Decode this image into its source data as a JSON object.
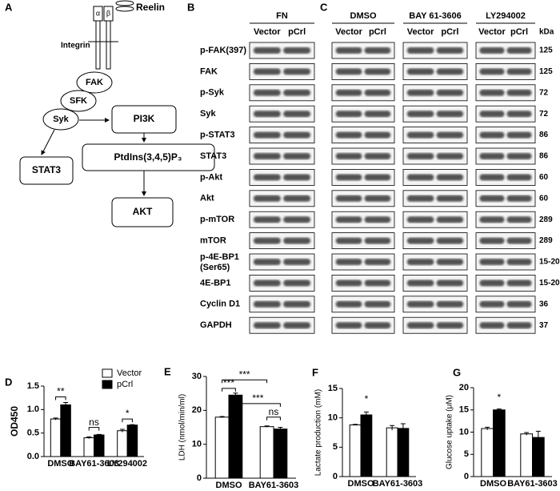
{
  "diagram": {
    "label": "A",
    "ligand": "Reelin",
    "receptor": "Integrin",
    "alpha": "α",
    "beta": "β",
    "nodes": [
      "FAK",
      "SFK",
      "Syk",
      "PI3K",
      "STAT3",
      "PtdIns(3,4,5)P₃",
      "AKT"
    ]
  },
  "blots": {
    "panel_b": {
      "label": "B",
      "condition": "FN",
      "lanes": [
        "Vector",
        "pCrl"
      ]
    },
    "panel_c": {
      "label": "C",
      "unit": "kDa",
      "groups": [
        {
          "name": "DMSO",
          "lanes": [
            "Vector",
            "pCrl"
          ]
        },
        {
          "name": "BAY 61-3606",
          "lanes": [
            "Vector",
            "pCrl"
          ]
        },
        {
          "name": "LY294002",
          "lanes": [
            "Vector",
            "pCrl"
          ]
        }
      ]
    },
    "rows": [
      {
        "protein": "p-FAK(397)",
        "kda": "125"
      },
      {
        "protein": "FAK",
        "kda": "125"
      },
      {
        "protein": "p-Syk",
        "kda": "72"
      },
      {
        "protein": "Syk",
        "kda": "72"
      },
      {
        "protein": "p-STAT3",
        "kda": "86"
      },
      {
        "protein": "STAT3",
        "kda": "86"
      },
      {
        "protein": "p-Akt",
        "kda": "60"
      },
      {
        "protein": "Akt",
        "kda": "60"
      },
      {
        "protein": "p-mTOR",
        "kda": "289"
      },
      {
        "protein": "mTOR",
        "kda": "289"
      },
      {
        "protein": "p-4E-BP1",
        "note": "(Ser65)",
        "kda": "15-20"
      },
      {
        "protein": "4E-BP1",
        "kda": "15-20"
      },
      {
        "protein": "Cyclin D1",
        "kda": "36"
      },
      {
        "protein": "GAPDH",
        "kda": "37"
      }
    ]
  },
  "chart_data": [
    {
      "type": "bar",
      "label": "D",
      "y_label": "OD450",
      "legend": "upper right",
      "categories": [
        "DMSO",
        "BAY61-3603",
        "LY294002"
      ],
      "series": [
        {
          "name": "Vector",
          "color": "#ffffff",
          "values": [
            0.8,
            0.4,
            0.55
          ],
          "errors": [
            0.02,
            0.02,
            0.03
          ]
        },
        {
          "name": "pCrl",
          "color": "#000000",
          "values": [
            1.1,
            0.46,
            0.67
          ],
          "errors": [
            0.05,
            0.01,
            0.01
          ]
        }
      ],
      "ylim": [
        0,
        1.5
      ],
      "yticks": [
        {
          "value": 0,
          "label": "0.0"
        },
        0.5,
        {
          "value": 1,
          "label": "1.0"
        },
        1.5
      ],
      "annotations": [
        "**",
        "ns",
        "*"
      ]
    },
    {
      "type": "bar",
      "label": "E",
      "y_label": "LDH (nmol/min/ml)",
      "categories": [
        "DMSO",
        "BAY61-3603"
      ],
      "series": [
        {
          "name": "Vector",
          "color": "#ffffff",
          "values": [
            18,
            15.2
          ],
          "errors": [
            0.2,
            0.2
          ]
        },
        {
          "name": "pCrl",
          "color": "#000000",
          "values": [
            24.5,
            14.5
          ],
          "errors": [
            0.6,
            0.5
          ]
        }
      ],
      "ylim": [
        0,
        30
      ],
      "yticks": [
        0,
        10,
        20,
        30
      ],
      "annotations": [
        "***",
        "***",
        "***",
        "ns"
      ]
    },
    {
      "type": "bar",
      "label": "F",
      "y_label": "Lactate production (mM)",
      "categories": [
        "DMSO",
        "BAY61-3603"
      ],
      "series": [
        {
          "name": "Vector",
          "color": "#ffffff",
          "values": [
            8.8,
            8.3
          ],
          "errors": [
            0.1,
            0.4
          ]
        },
        {
          "name": "pCrl",
          "color": "#000000",
          "values": [
            10.5,
            8.2
          ],
          "errors": [
            0.5,
            0.8
          ]
        }
      ],
      "ylim": [
        0,
        15
      ],
      "yticks": [
        0,
        5,
        10,
        15
      ],
      "annotations": [
        "*"
      ]
    },
    {
      "type": "bar",
      "label": "G",
      "y_label": "Glucose uptake (μM)",
      "categories": [
        "DMSO",
        "BAY61-3603"
      ],
      "series": [
        {
          "name": "Vector",
          "color": "#ffffff",
          "values": [
            10.8,
            9.6
          ],
          "errors": [
            0.3,
            0.3
          ]
        },
        {
          "name": "pCrl",
          "color": "#000000",
          "values": [
            15,
            8.8
          ],
          "errors": [
            0.2,
            1.4
          ]
        }
      ],
      "ylim": [
        0,
        20
      ],
      "yticks": [
        0,
        5,
        10,
        15,
        20
      ],
      "annotations": [
        "*"
      ]
    }
  ]
}
